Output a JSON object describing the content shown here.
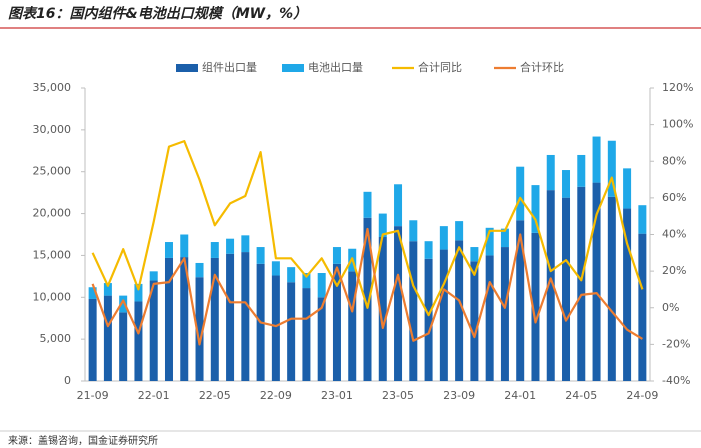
{
  "chart_data": {
    "type": "bar-line",
    "title": "图表16：国内组件&电池出口规模（MW，%）",
    "source": "来源：盖锡咨询，国金证券研究所",
    "categories": [
      "21-09",
      null,
      null,
      null,
      "22-01",
      null,
      null,
      null,
      "22-05",
      null,
      null,
      null,
      "22-09",
      null,
      null,
      null,
      "23-01",
      null,
      null,
      null,
      "23-05",
      null,
      null,
      null,
      "23-09",
      null,
      null,
      null,
      "24-01",
      null,
      null,
      null,
      "24-05",
      null,
      null,
      null,
      "24-09"
    ],
    "series": [
      {
        "name": "组件出口量",
        "kind": "bar",
        "color": "#1b5faa",
        "values": [
          9800,
          10200,
          8200,
          9500,
          12000,
          14700,
          14800,
          12400,
          14700,
          15200,
          15400,
          14000,
          12600,
          11800,
          11100,
          10000,
          14000,
          13100,
          19500,
          17200,
          18500,
          16700,
          14600,
          15700,
          16800,
          14300,
          15000,
          16000,
          19200,
          17700,
          22800,
          21900,
          23200,
          23700,
          22000,
          20600,
          17600
        ]
      },
      {
        "name": "电池出口量",
        "kind": "bar",
        "color": "#1fa8e8",
        "values": [
          1400,
          1500,
          2000,
          2100,
          1100,
          1900,
          2700,
          1700,
          1900,
          1800,
          2000,
          2000,
          1700,
          1800,
          1800,
          2900,
          2000,
          2700,
          3100,
          2800,
          5000,
          2500,
          2100,
          2800,
          2300,
          1700,
          3300,
          2200,
          6400,
          5700,
          4200,
          3300,
          3800,
          5500,
          6700,
          4800,
          3400
        ]
      },
      {
        "name": "合计同比",
        "kind": "line",
        "axis": "y2",
        "color": "#f5bb00",
        "values": [
          30,
          12,
          32,
          10,
          47,
          88,
          91,
          70,
          45,
          57,
          61,
          85,
          27,
          27,
          17,
          27,
          12,
          27,
          0,
          40,
          42,
          12,
          -4,
          13,
          33,
          18,
          42,
          42,
          60,
          48,
          20,
          26,
          15,
          51,
          71,
          35,
          10
        ]
      },
      {
        "name": "合计环比",
        "kind": "line",
        "axis": "y2",
        "color": "#ed7d31",
        "values": [
          13,
          -10,
          4,
          -14,
          13,
          14,
          27,
          -20,
          18,
          3,
          3,
          -8,
          -10,
          -6,
          -6,
          0,
          22,
          -2,
          43,
          -11,
          18,
          -18,
          -14,
          10,
          4,
          -16,
          14,
          0,
          40,
          -8,
          16,
          -7,
          7,
          8,
          -2,
          -12,
          -17
        ]
      }
    ],
    "ylim": [
      0,
      35000
    ],
    "yticks": [
      0,
      {
        "value": 5000,
        "label": "5,000"
      },
      {
        "value": 10000,
        "label": "10,000"
      },
      {
        "value": 15000,
        "label": "15,000"
      },
      {
        "value": 20000,
        "label": "20,000"
      },
      {
        "value": 25000,
        "label": "25,000"
      },
      {
        "value": 30000,
        "label": "30,000"
      },
      {
        "value": 35000,
        "label": "35,000"
      }
    ],
    "y2lim": [
      -40,
      120
    ],
    "y2ticks": [
      {
        "value": -40,
        "label": "-40%"
      },
      {
        "value": -20,
        "label": "-20%"
      },
      {
        "value": 0,
        "label": "0%"
      },
      {
        "value": 20,
        "label": "20%"
      },
      {
        "value": 40,
        "label": "40%"
      },
      {
        "value": 60,
        "label": "60%"
      },
      {
        "value": 80,
        "label": "80%"
      },
      {
        "value": 100,
        "label": "100%"
      },
      {
        "value": 120,
        "label": "120%"
      }
    ]
  }
}
